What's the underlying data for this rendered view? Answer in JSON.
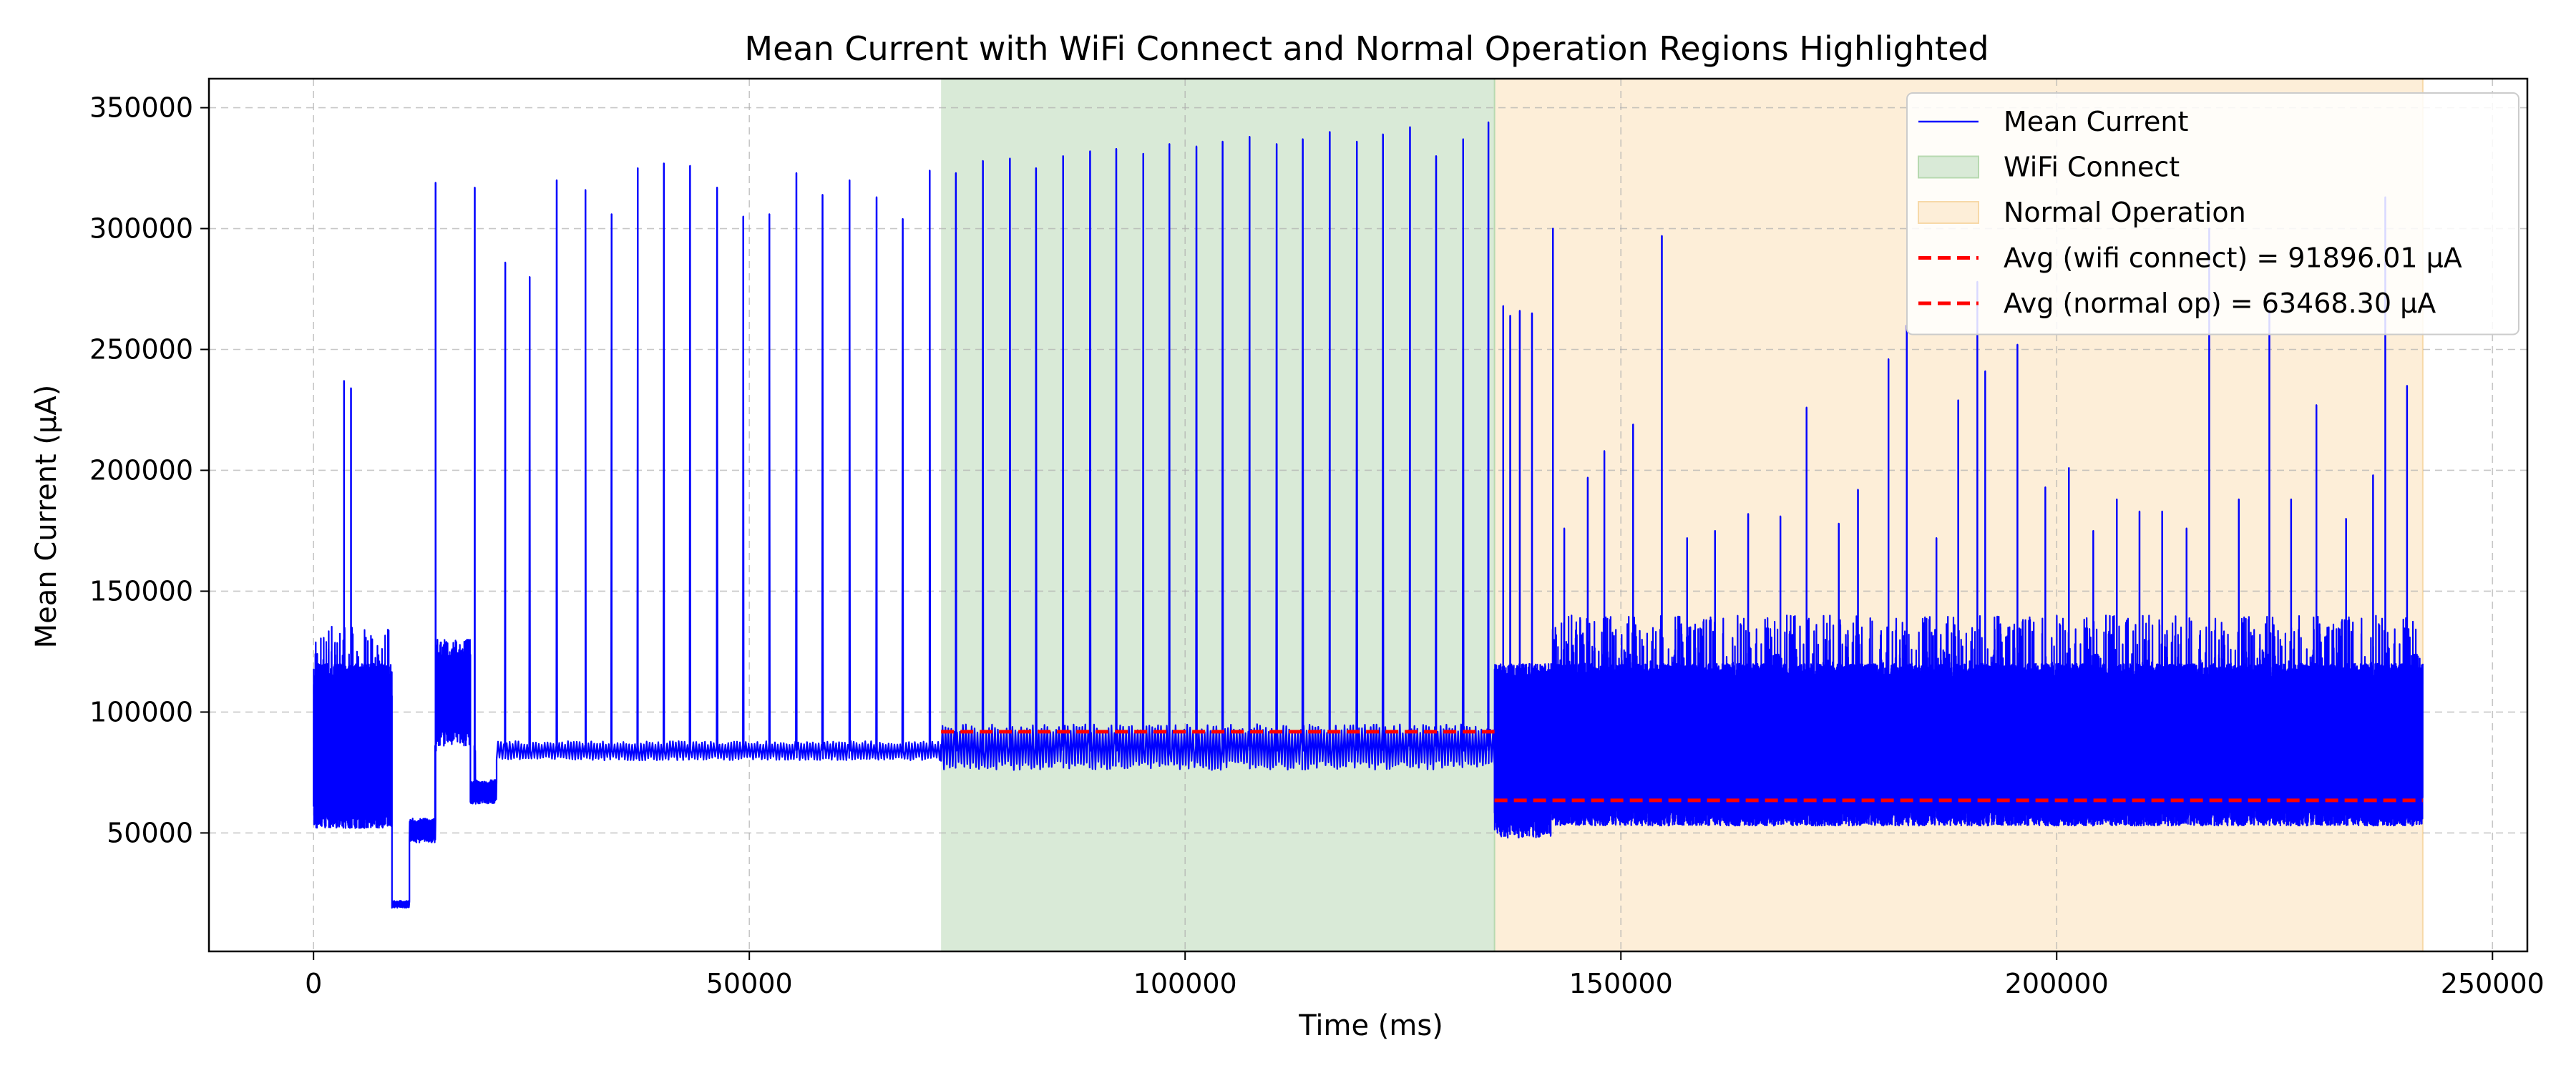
{
  "chart_data": {
    "type": "line",
    "title": "Mean Current with WiFi Connect and Normal Operation Regions Highlighted",
    "xlabel": "Time (ms)",
    "ylabel": "Mean Current (µA)",
    "xlim": [
      -12000,
      254000
    ],
    "ylim": [
      1000,
      362000
    ],
    "xticks": [
      0,
      50000,
      100000,
      150000,
      200000,
      250000
    ],
    "yticks": [
      50000,
      100000,
      150000,
      200000,
      250000,
      300000,
      350000
    ],
    "grid": true,
    "legend_position": "top-right",
    "colors": {
      "line": "#0000ff",
      "avg": "#ff0000",
      "wifi_region": "#d9ead7",
      "normal_region": "#fdeed8"
    },
    "regions": [
      {
        "name": "WiFi Connect",
        "start": 72000,
        "end": 135500,
        "color": "#d9ead7"
      },
      {
        "name": "Normal Operation",
        "start": 135500,
        "end": 242000,
        "color": "#fdeed8"
      }
    ],
    "averages": [
      {
        "label": "Avg (wifi connect) = 91896.01 µA",
        "value": 91896.01,
        "start": 72000,
        "end": 135500
      },
      {
        "label": "Avg (normal op) = 63468.30 µA",
        "value": 63468.3,
        "start": 135500,
        "end": 242000
      }
    ],
    "legend": [
      {
        "label": "Mean Current",
        "kind": "line",
        "color": "#0000ff"
      },
      {
        "label": "WiFi Connect",
        "kind": "patch",
        "color": "#d9ead7"
      },
      {
        "label": "Normal Operation",
        "kind": "patch",
        "color": "#fdeed8"
      },
      {
        "label": "Avg (wifi connect) = 91896.01 µA",
        "kind": "dashed",
        "color": "#ff0000"
      },
      {
        "label": "Avg (normal op) = 63468.30 µA",
        "kind": "dashed",
        "color": "#ff0000"
      }
    ],
    "series": [
      {
        "name": "Mean Current",
        "segments": [
          {
            "start": 0,
            "end": 9000,
            "low": 52000,
            "high": 120000,
            "density": 140,
            "noise_max": 136000
          },
          {
            "start": 9000,
            "end": 11000,
            "low": 19000,
            "high": 22000,
            "density": 20
          },
          {
            "start": 11000,
            "end": 14000,
            "low": 46000,
            "high": 56000,
            "density": 30
          },
          {
            "start": 14000,
            "end": 18000,
            "low": 86000,
            "high": 130000,
            "density": 40
          },
          {
            "start": 18000,
            "end": 21000,
            "low": 62000,
            "high": 72000,
            "density": 30
          },
          {
            "start": 21000,
            "end": 72000,
            "low": 80000,
            "high": 88000,
            "density": 6
          },
          {
            "start": 72000,
            "end": 135500,
            "low": 76000,
            "high": 95000,
            "density": 6
          },
          {
            "start": 135500,
            "end": 142000,
            "low": 48000,
            "high": 120000,
            "density": 90
          },
          {
            "start": 142000,
            "end": 242000,
            "low": 53000,
            "high": 120000,
            "density": 140,
            "noise_max": 140000
          }
        ],
        "peaks": [
          [
            3500,
            237000
          ],
          [
            4300,
            234000
          ],
          [
            14000,
            319000
          ],
          [
            18500,
            317000
          ],
          [
            22000,
            286000
          ],
          [
            24800,
            280000
          ],
          [
            27900,
            320000
          ],
          [
            31200,
            316000
          ],
          [
            34200,
            306000
          ],
          [
            37200,
            325000
          ],
          [
            40200,
            327000
          ],
          [
            43200,
            326000
          ],
          [
            46300,
            317000
          ],
          [
            49300,
            305000
          ],
          [
            52300,
            306000
          ],
          [
            55400,
            323000
          ],
          [
            58400,
            314000
          ],
          [
            61500,
            320000
          ],
          [
            64600,
            313000
          ],
          [
            67600,
            304000
          ],
          [
            70700,
            324000
          ],
          [
            73700,
            323000
          ],
          [
            76800,
            328000
          ],
          [
            79900,
            329000
          ],
          [
            82900,
            325000
          ],
          [
            86000,
            330000
          ],
          [
            89100,
            332000
          ],
          [
            92100,
            333000
          ],
          [
            95200,
            331000
          ],
          [
            98200,
            335000
          ],
          [
            101300,
            334000
          ],
          [
            104300,
            336000
          ],
          [
            107400,
            338000
          ],
          [
            110500,
            335000
          ],
          [
            113500,
            337000
          ],
          [
            116600,
            340000
          ],
          [
            119700,
            336000
          ],
          [
            122700,
            339000
          ],
          [
            125800,
            342000
          ],
          [
            128800,
            330000
          ],
          [
            131900,
            337000
          ],
          [
            134800,
            344000
          ],
          [
            136500,
            268000
          ],
          [
            137300,
            264000
          ],
          [
            138400,
            266000
          ],
          [
            139800,
            265000
          ],
          [
            142200,
            300000
          ],
          [
            143500,
            176000
          ],
          [
            146200,
            197000
          ],
          [
            148100,
            208000
          ],
          [
            151400,
            219000
          ],
          [
            154700,
            297000
          ],
          [
            157600,
            172000
          ],
          [
            160800,
            175000
          ],
          [
            164600,
            182000
          ],
          [
            168300,
            181000
          ],
          [
            171300,
            226000
          ],
          [
            175000,
            178000
          ],
          [
            177200,
            192000
          ],
          [
            180700,
            246000
          ],
          [
            182800,
            260000
          ],
          [
            186200,
            172000
          ],
          [
            188700,
            229000
          ],
          [
            190900,
            278000
          ],
          [
            191800,
            241000
          ],
          [
            195500,
            252000
          ],
          [
            198700,
            193000
          ],
          [
            201400,
            201000
          ],
          [
            204200,
            175000
          ],
          [
            206900,
            188000
          ],
          [
            209500,
            183000
          ],
          [
            212100,
            183000
          ],
          [
            214900,
            176000
          ],
          [
            217500,
            300000
          ],
          [
            220900,
            188000
          ],
          [
            224400,
            266000
          ],
          [
            226900,
            188000
          ],
          [
            229800,
            227000
          ],
          [
            233200,
            180000
          ],
          [
            236300,
            198000
          ],
          [
            237700,
            313000
          ],
          [
            240200,
            235000
          ]
        ]
      }
    ]
  }
}
